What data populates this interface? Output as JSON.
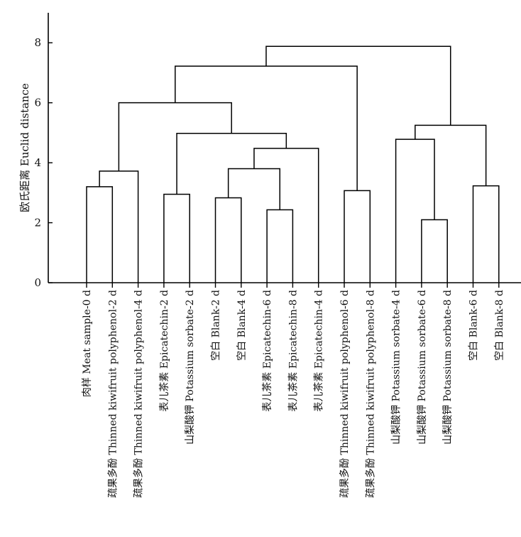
{
  "chart_data": {
    "type": "dendrogram",
    "ylabel": "欧氏距离 Euclid distance",
    "ylim": [
      0,
      9
    ],
    "yticks": [
      0,
      2,
      4,
      6,
      8
    ],
    "leaves": [
      "肉样 Meat sample-0 d",
      "疏果多酚 Thinned kiwifruit polyphenol-2 d",
      "疏果多酚 Thinned kiwifruit polyphenol-4 d",
      "表儿茶素 Epicatechin-2 d",
      "山梨酸钾 Potassium sorbate-2 d",
      "空白 Blank-2 d",
      "空白 Blank-4 d",
      "表儿茶素 Epicatechin-6 d",
      "表儿茶素 Epicatechin-8 d",
      "表儿茶素 Epicatechin-4 d",
      "疏果多酚 Thinned kiwifruit polyphenol-6 d",
      "疏果多酚 Thinned kiwifruit polyphenol-8 d",
      "山梨酸钾 Potassium sorbate-4 d",
      "山梨酸钾 Potassium sorbate-6 d",
      "山梨酸钾 Potassium sorbate-8 d",
      "空白 Blank-6 d",
      "空白 Blank-8 d"
    ],
    "merges": [
      {
        "a": "L0",
        "b": "L1",
        "height": 3.2
      },
      {
        "a": "M0",
        "b": "L2",
        "height": 3.72
      },
      {
        "a": "L3",
        "b": "L4",
        "height": 2.95
      },
      {
        "a": "L5",
        "b": "L6",
        "height": 2.83
      },
      {
        "a": "L7",
        "b": "L8",
        "height": 2.43
      },
      {
        "a": "M3",
        "b": "M4",
        "height": 3.8
      },
      {
        "a": "M5",
        "b": "L9",
        "height": 4.48
      },
      {
        "a": "M2",
        "b": "M6",
        "height": 4.98
      },
      {
        "a": "M1",
        "b": "M7",
        "height": 6.0
      },
      {
        "a": "L10",
        "b": "L11",
        "height": 3.07
      },
      {
        "a": "M8",
        "b": "M9",
        "height": 7.22
      },
      {
        "a": "L13",
        "b": "L14",
        "height": 2.1
      },
      {
        "a": "L12",
        "b": "M11",
        "height": 4.78
      },
      {
        "a": "L15",
        "b": "L16",
        "height": 3.23
      },
      {
        "a": "M12",
        "b": "M13",
        "height": 5.25
      },
      {
        "a": "M10",
        "b": "M14",
        "height": 7.88
      }
    ]
  }
}
